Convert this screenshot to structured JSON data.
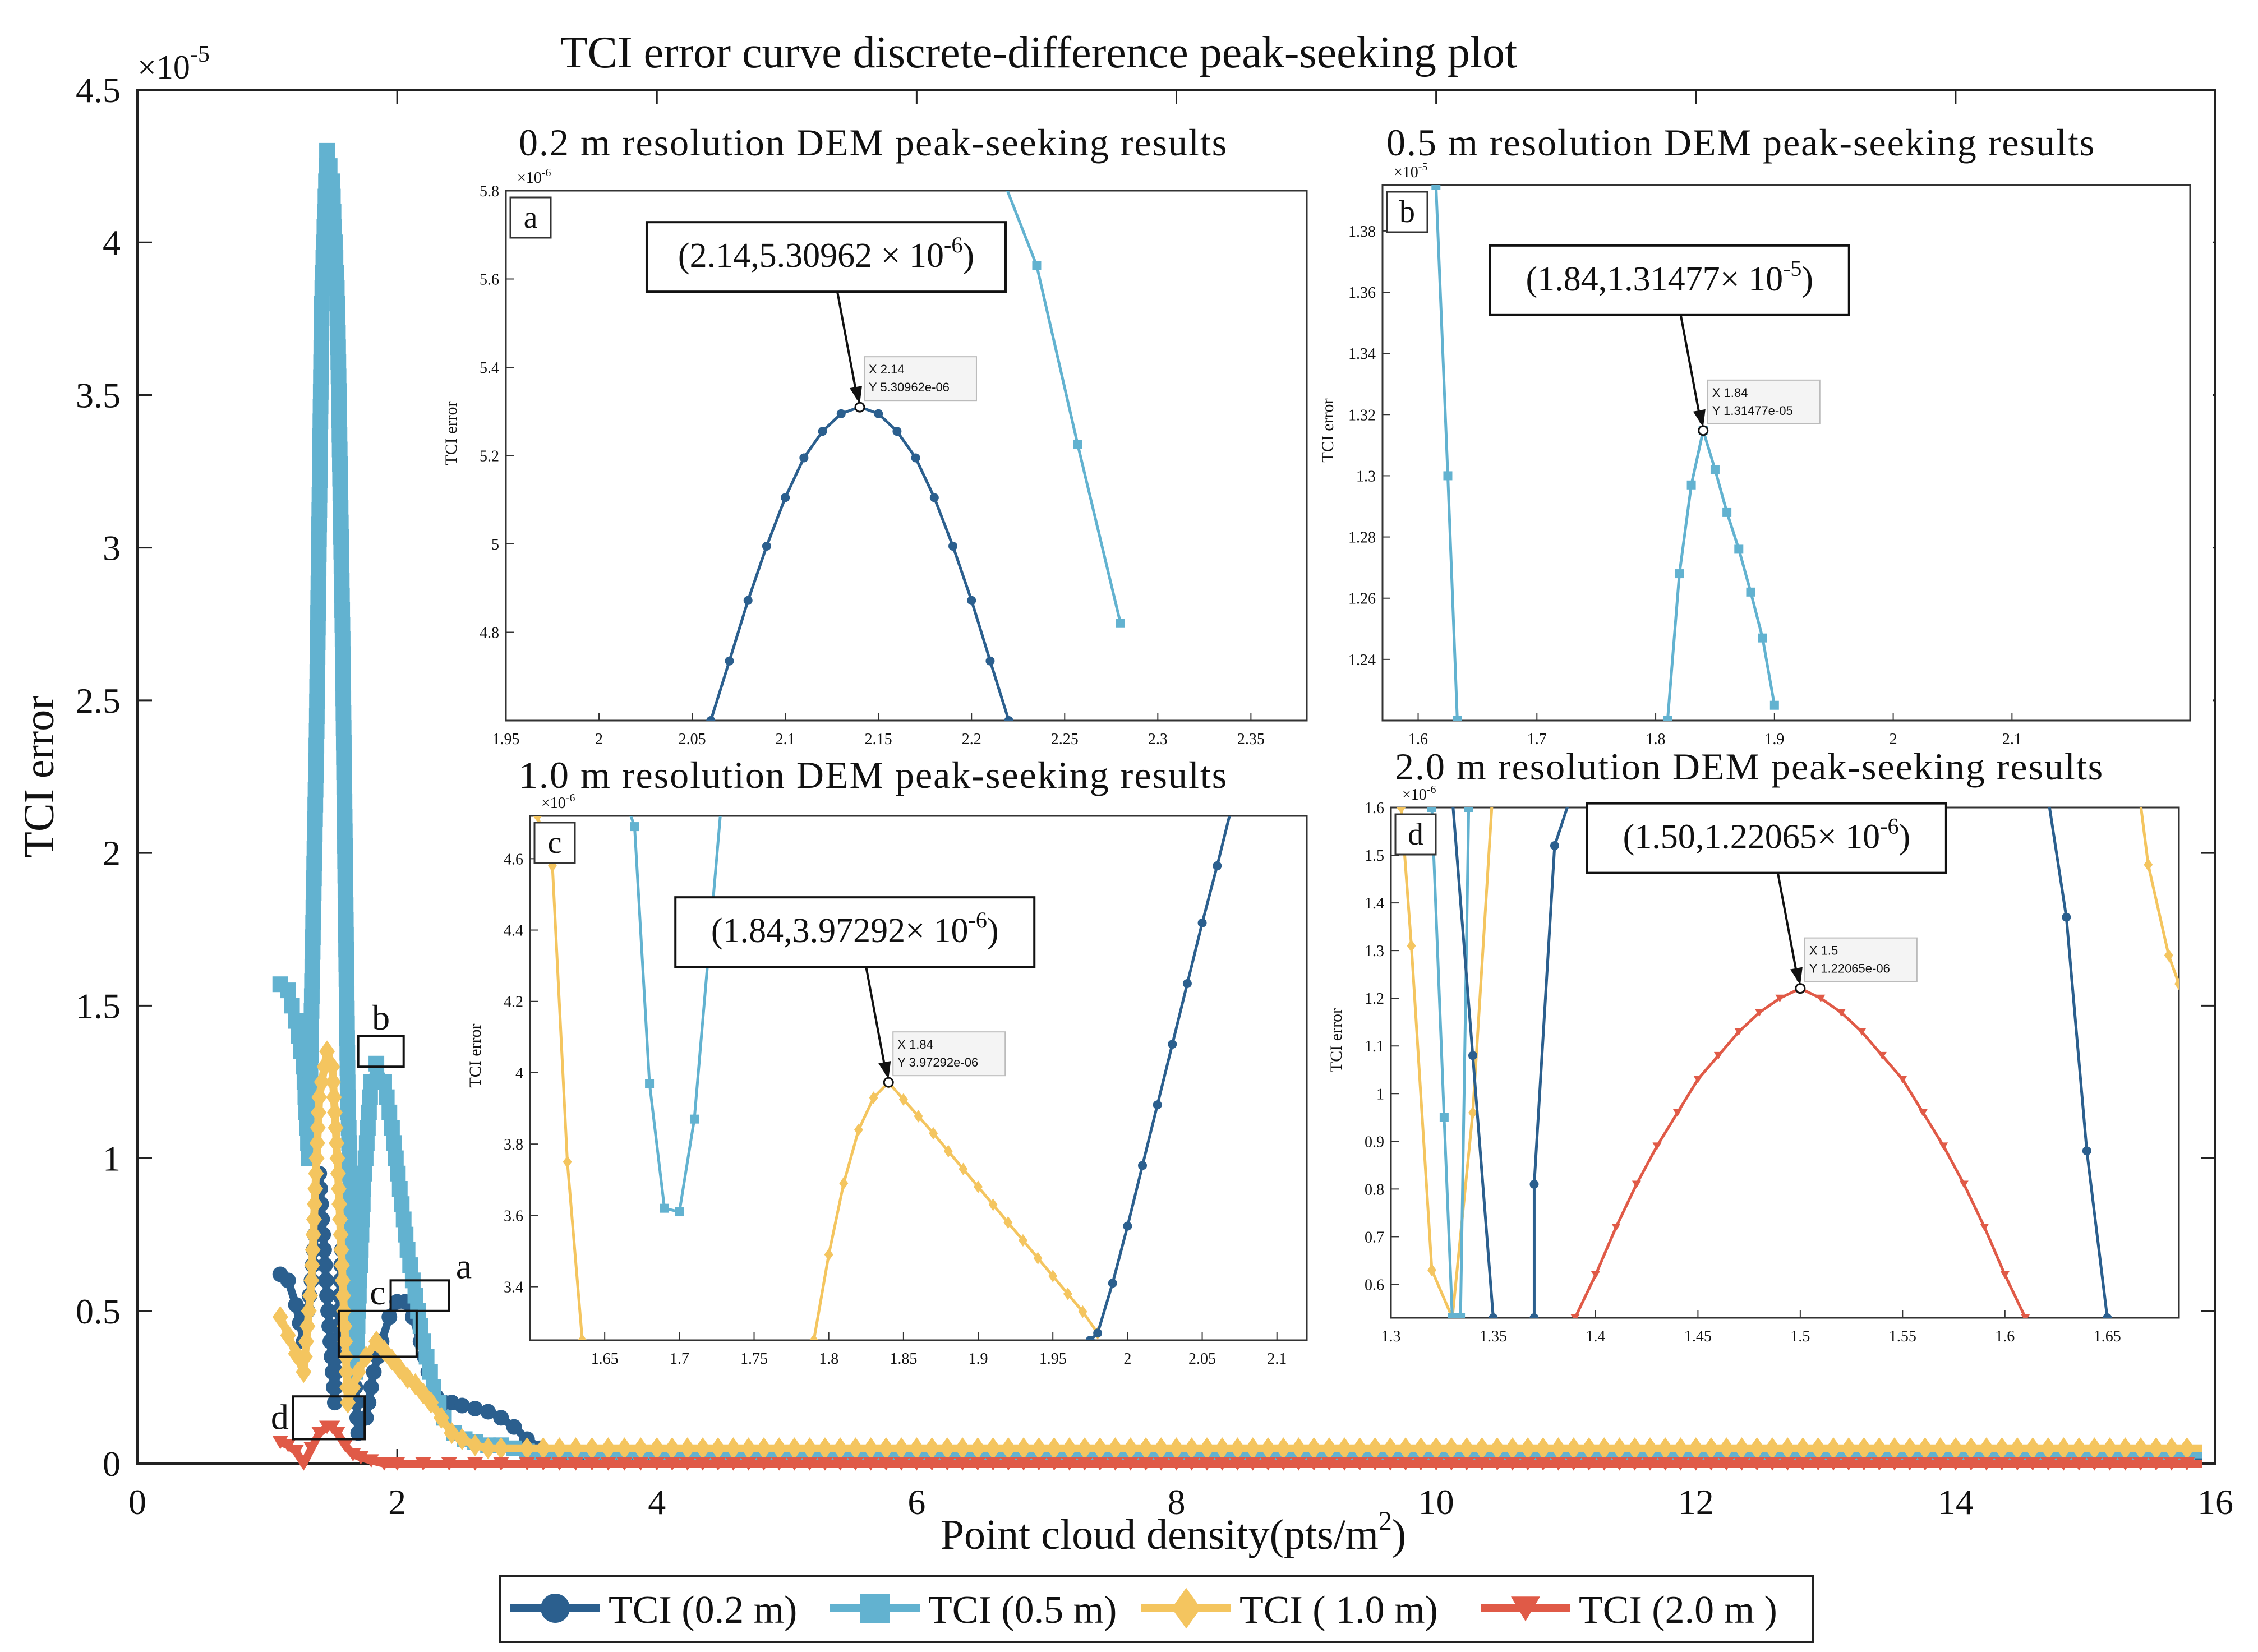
{
  "colors": {
    "tci_02": "#2b5f8e",
    "tci_05": "#62b2d0",
    "tci_10": "#f4c55f",
    "tci_20": "#e05a47",
    "datatip_text": "#1e8fd6",
    "axis": "#222222"
  },
  "chart_data": [
    {
      "id": "main",
      "type": "line",
      "title": "TCI error curve discrete-difference peak-seeking plot",
      "xlabel_main": "Point cloud density(pts/m",
      "xlabel_sup": "2",
      "xlabel_close": ")",
      "ylabel": "TCI error",
      "y_exponent": "×10",
      "y_exponent_power": "-5",
      "xlim": [
        0,
        16
      ],
      "ylim": [
        0,
        4.5
      ],
      "xticks": [
        "0",
        "2",
        "4",
        "6",
        "8",
        "10",
        "12",
        "14",
        "16"
      ],
      "yticks": [
        "0",
        "0.5",
        "1",
        "1.5",
        "2",
        "2.5",
        "3",
        "3.5",
        "4",
        "4.5"
      ],
      "legend": [
        {
          "label": "TCI (0.2 m)",
          "marker": "circle",
          "color": "#2b5f8e"
        },
        {
          "label": "TCI (0.5 m)",
          "marker": "square",
          "color": "#62b2d0"
        },
        {
          "label": "TCI ( 1.0 m)",
          "marker": "diamond",
          "color": "#f4c55f"
        },
        {
          "label": "TCI (2.0 m )",
          "marker": "triangle",
          "color": "#e05a47"
        }
      ],
      "zoom_boxes": [
        {
          "label": "a",
          "x": [
            1.95,
            2.4
          ],
          "y": [
            0.5,
            0.6
          ]
        },
        {
          "label": "b",
          "x": [
            1.7,
            2.05
          ],
          "y": [
            1.3,
            1.4
          ]
        },
        {
          "label": "c",
          "x": [
            1.55,
            2.15
          ],
          "y": [
            0.35,
            0.5
          ]
        },
        {
          "label": "d",
          "x": [
            1.2,
            1.75
          ],
          "y": [
            0.08,
            0.22
          ]
        }
      ],
      "series": [
        {
          "name": "TCI (0.2 m)",
          "x": [
            1.1,
            1.16,
            1.22,
            1.28,
            1.34,
            1.4,
            1.46,
            1.52,
            1.58,
            1.64,
            1.7,
            1.76,
            1.82,
            1.88,
            1.94,
            2.0,
            2.06,
            2.12,
            2.18,
            2.24,
            2.3,
            2.36,
            2.42,
            2.5,
            2.6,
            2.7,
            2.8,
            2.9,
            3.0,
            3.1,
            3.2,
            3.6,
            4,
            6,
            8,
            10,
            12,
            14,
            15.9
          ],
          "y": [
            0.62,
            0.6,
            0.52,
            0.4,
            0.6,
            0.95,
            0.55,
            0.2,
            0.75,
            0.5,
            0.1,
            0.15,
            0.3,
            0.4,
            0.48,
            0.53,
            0.53,
            0.48,
            0.4,
            0.3,
            0.22,
            0.2,
            0.2,
            0.19,
            0.18,
            0.17,
            0.15,
            0.12,
            0.08,
            0.05,
            0.02,
            0.02,
            0.02,
            0.02,
            0.02,
            0.02,
            0.02,
            0.02,
            0.02
          ]
        },
        {
          "name": "TCI (0.5 m)",
          "x": [
            1.1,
            1.16,
            1.22,
            1.28,
            1.32,
            1.38,
            1.42,
            1.46,
            1.5,
            1.54,
            1.58,
            1.62,
            1.68,
            1.74,
            1.8,
            1.84,
            1.9,
            1.96,
            2.02,
            2.08,
            2.14,
            2.2,
            2.28,
            2.36,
            2.44,
            2.52,
            2.6,
            2.7,
            2.8,
            2.9,
            3.0,
            3.1,
            3.5,
            4,
            6,
            8,
            10,
            12,
            14,
            15.9
          ],
          "y": [
            1.57,
            1.55,
            1.45,
            1.3,
            1.0,
            2.4,
            3.8,
            4.3,
            4.2,
            3.8,
            2.7,
            1.2,
            0.3,
            0.9,
            1.25,
            1.31,
            1.25,
            1.1,
            0.9,
            0.7,
            0.55,
            0.4,
            0.25,
            0.15,
            0.1,
            0.08,
            0.07,
            0.06,
            0.06,
            0.05,
            0.04,
            0.03,
            0.03,
            0.03,
            0.03,
            0.03,
            0.03,
            0.03,
            0.03,
            0.03
          ]
        },
        {
          "name": "TCI ( 1.0 m)",
          "x": [
            1.1,
            1.16,
            1.22,
            1.28,
            1.34,
            1.4,
            1.46,
            1.5,
            1.54,
            1.58,
            1.62,
            1.66,
            1.7,
            1.76,
            1.84,
            1.9,
            1.96,
            2.02,
            2.08,
            2.14,
            2.2,
            2.26,
            2.34,
            2.42,
            2.5,
            2.6,
            2.7,
            2.8,
            3.0,
            3.5,
            4,
            6,
            8,
            10,
            12,
            14,
            15.9
          ],
          "y": [
            0.48,
            0.42,
            0.36,
            0.3,
            0.6,
            1.2,
            1.35,
            1.3,
            1.0,
            0.6,
            0.2,
            0.25,
            0.3,
            0.35,
            0.4,
            0.37,
            0.34,
            0.31,
            0.28,
            0.26,
            0.23,
            0.2,
            0.15,
            0.1,
            0.08,
            0.06,
            0.05,
            0.05,
            0.05,
            0.05,
            0.05,
            0.05,
            0.05,
            0.05,
            0.05,
            0.05,
            0.05
          ]
        },
        {
          "name": "TCI (2.0 m )",
          "x": [
            1.1,
            1.16,
            1.22,
            1.28,
            1.34,
            1.4,
            1.46,
            1.5,
            1.54,
            1.6,
            1.66,
            1.72,
            1.8,
            1.9,
            2.0,
            2.2,
            2.4,
            2.6,
            2.8,
            3.0,
            3.5,
            4,
            6,
            8,
            10,
            12,
            14,
            15.9
          ],
          "y": [
            0.07,
            0.06,
            0.04,
            0.0,
            0.05,
            0.1,
            0.12,
            0.12,
            0.1,
            0.06,
            0.03,
            0.02,
            0.01,
            0.0,
            0.0,
            0.0,
            0.0,
            0.0,
            0.0,
            0.0,
            0.0,
            0.0,
            0.0,
            0.0,
            0.0,
            0.0,
            0.0,
            0.0
          ]
        }
      ]
    },
    {
      "id": "a",
      "type": "line",
      "title": "0.2 m resolution DEM peak-seeking results",
      "panel_label": "a",
      "ylabel": "TCI error",
      "exponent": "×10",
      "exponent_power": "-6",
      "xlim": [
        1.95,
        2.38
      ],
      "ylim": [
        4.6,
        5.8
      ],
      "xticks": [
        1.95,
        2.0,
        2.05,
        2.1,
        2.15,
        2.2,
        2.25,
        2.3,
        2.35
      ],
      "xtick_labels": [
        "1.95",
        "2",
        "2.05",
        "2.1",
        "2.15",
        "2.2",
        "2.25",
        "2.3",
        "2.35"
      ],
      "yticks": [
        4.8,
        5.0,
        5.2,
        5.4,
        5.6,
        5.8
      ],
      "ytick_labels": [
        "4.8",
        "5",
        "5.2",
        "5.4",
        "5.6",
        "5.8"
      ],
      "annotation_main": "(2.14,5.30962 × 10",
      "annotation_power": "-6",
      "annotation_close": ")",
      "datatip_x": "X 2.14",
      "datatip_y": "Y 5.30962e-06",
      "peak": [
        2.14,
        5.30962
      ],
      "series": [
        {
          "name": "TCI (0.2 m)",
          "x": [
            2.06,
            2.07,
            2.08,
            2.09,
            2.1,
            2.11,
            2.12,
            2.13,
            2.14,
            2.15,
            2.16,
            2.17,
            2.18,
            2.19,
            2.2,
            2.21,
            2.22
          ],
          "y": [
            4.6,
            4.735,
            4.872,
            4.995,
            5.105,
            5.195,
            5.255,
            5.295,
            5.31,
            5.295,
            5.255,
            5.195,
            5.105,
            4.995,
            4.872,
            4.735,
            4.6
          ]
        },
        {
          "name": "TCI (0.5 m)",
          "x": [
            2.21,
            2.235,
            2.257,
            2.28
          ],
          "y": [
            5.9,
            5.63,
            5.225,
            4.82
          ]
        }
      ]
    },
    {
      "id": "b",
      "type": "line",
      "title": "0.5 m resolution DEM peak-seeking results",
      "panel_label": "b",
      "ylabel": "TCI error",
      "exponent": "×10",
      "exponent_power": "-5",
      "xlim": [
        1.57,
        2.25
      ],
      "ylim": [
        1.22,
        1.395
      ],
      "xticks": [
        1.6,
        1.7,
        1.8,
        1.9,
        2.0,
        2.1
      ],
      "xtick_labels": [
        "1.6",
        "1.7",
        "1.8",
        "1.9",
        "2",
        "2.1"
      ],
      "yticks": [
        1.24,
        1.26,
        1.28,
        1.3,
        1.32,
        1.34,
        1.36,
        1.38
      ],
      "ytick_labels": [
        "1.24",
        "1.26",
        "1.28",
        "1.3",
        "1.32",
        "1.34",
        "1.36",
        "1.38"
      ],
      "annotation_main": "(1.84,1.31477× 10",
      "annotation_power": "-5",
      "annotation_close": ")",
      "datatip_x": "X 1.84",
      "datatip_y": "Y 1.31477e-05",
      "peak": [
        1.84,
        1.31477
      ],
      "series": [
        {
          "name": "TCI (0.5 m)",
          "x": [
            1.81,
            1.82,
            1.83,
            1.84,
            1.85,
            1.86,
            1.87,
            1.88,
            1.89,
            1.9
          ],
          "y": [
            1.22,
            1.268,
            1.297,
            1.31477,
            1.302,
            1.288,
            1.276,
            1.262,
            1.247,
            1.225
          ]
        },
        {
          "name": "TCI (0.5 m) steep",
          "x": [
            1.615,
            1.625,
            1.633
          ],
          "y": [
            1.395,
            1.3,
            1.22
          ]
        }
      ]
    },
    {
      "id": "c",
      "type": "line",
      "title": "1.0 m resolution DEM peak-seeking results",
      "panel_label": "c",
      "ylabel": "TCI error",
      "exponent": "×10",
      "exponent_power": "-6",
      "xlim": [
        1.6,
        2.12
      ],
      "ylim": [
        3.25,
        4.72
      ],
      "xticks": [
        1.65,
        1.7,
        1.75,
        1.8,
        1.85,
        1.9,
        1.95,
        2.0,
        2.05,
        2.1
      ],
      "xtick_labels": [
        "1.65",
        "1.7",
        "1.75",
        "1.8",
        "1.85",
        "1.9",
        "1.95",
        "2",
        "2.05",
        "2.1"
      ],
      "yticks": [
        3.4,
        3.6,
        3.8,
        4.0,
        4.2,
        4.4,
        4.6
      ],
      "ytick_labels": [
        "3.4",
        "3.6",
        "3.8",
        "4",
        "4.2",
        "4.4",
        "4.6"
      ],
      "annotation_main": "(1.84,3.97292× 10",
      "annotation_power": "-6",
      "annotation_close": ")",
      "datatip_x": "X 1.84",
      "datatip_y": "Y 3.97292e-06",
      "peak": [
        1.84,
        3.97292
      ],
      "series": [
        {
          "name": "TCI ( 1.0 m)",
          "x": [
            1.79,
            1.8,
            1.81,
            1.82,
            1.83,
            1.84,
            1.85,
            1.86,
            1.87,
            1.88,
            1.89,
            1.9,
            1.91,
            1.92,
            1.93,
            1.94,
            1.95,
            1.96,
            1.97,
            1.98
          ],
          "y": [
            3.25,
            3.49,
            3.69,
            3.84,
            3.93,
            3.97292,
            3.925,
            3.878,
            3.83,
            3.78,
            3.73,
            3.68,
            3.63,
            3.58,
            3.53,
            3.48,
            3.43,
            3.38,
            3.33,
            3.27
          ]
        },
        {
          "name": "TCI ( 1.0 m) left",
          "x": [
            1.605,
            1.615,
            1.625,
            1.635
          ],
          "y": [
            4.72,
            4.58,
            3.75,
            3.25
          ]
        },
        {
          "name": "TCI (0.5 m)",
          "x": [
            1.665,
            1.67,
            1.68,
            1.69,
            1.7,
            1.71,
            1.72,
            1.728
          ],
          "y": [
            4.75,
            4.69,
            3.97,
            3.62,
            3.61,
            3.87,
            4.36,
            4.75
          ]
        },
        {
          "name": "TCI (0.2 m)",
          "x": [
            1.975,
            1.98,
            1.99,
            2.0,
            2.01,
            2.02,
            2.03,
            2.04,
            2.05,
            2.06
          ],
          "y": [
            3.25,
            3.27,
            3.41,
            3.57,
            3.74,
            3.91,
            4.08,
            4.25,
            4.42,
            4.58
          ]
        },
        {
          "name": "TCI (0.2 m) top",
          "x": [
            2.06,
            2.07
          ],
          "y": [
            4.58,
            4.75
          ]
        }
      ]
    },
    {
      "id": "d",
      "type": "line",
      "title": "2.0 m resolution DEM peak-seeking results",
      "panel_label": "d",
      "ylabel": "TCI error",
      "exponent": "×10",
      "exponent_power": "-6",
      "xlim": [
        1.3,
        1.685
      ],
      "ylim": [
        0.53,
        1.6
      ],
      "xticks": [
        1.3,
        1.35,
        1.4,
        1.45,
        1.5,
        1.55,
        1.6,
        1.65
      ],
      "xtick_labels": [
        "1.3",
        "1.35",
        "1.4",
        "1.45",
        "1.5",
        "1.55",
        "1.6",
        "1.65"
      ],
      "yticks": [
        0.6,
        0.7,
        0.8,
        0.9,
        1.0,
        1.1,
        1.2,
        1.3,
        1.4,
        1.5,
        1.6
      ],
      "ytick_labels": [
        "0.6",
        "0.7",
        "0.8",
        "0.9",
        "1",
        "1.1",
        "1.2",
        "1.3",
        "1.4",
        "1.5",
        "1.6"
      ],
      "annotation_main": "(1.50,1.22065× 10",
      "annotation_power": "-6",
      "annotation_close": ")",
      "datatip_x": "X 1.5",
      "datatip_y": "Y 1.22065e-06",
      "peak": [
        1.5,
        1.22065
      ],
      "series": [
        {
          "name": "TCI (2.0 m )",
          "x": [
            1.39,
            1.4,
            1.41,
            1.42,
            1.43,
            1.44,
            1.45,
            1.46,
            1.47,
            1.48,
            1.49,
            1.5,
            1.51,
            1.52,
            1.53,
            1.54,
            1.55,
            1.56,
            1.57,
            1.58,
            1.59,
            1.6,
            1.61
          ],
          "y": [
            0.53,
            0.62,
            0.72,
            0.81,
            0.89,
            0.96,
            1.03,
            1.08,
            1.13,
            1.17,
            1.2,
            1.22065,
            1.2,
            1.17,
            1.13,
            1.08,
            1.03,
            0.96,
            0.89,
            0.81,
            0.72,
            0.62,
            0.53
          ]
        },
        {
          "name": "TCI ( 1.0 m) a",
          "x": [
            1.305,
            1.31,
            1.32,
            1.33
          ],
          "y": [
            1.6,
            1.31,
            0.63,
            0.53
          ]
        },
        {
          "name": "TCI ( 1.0 m) b",
          "x": [
            1.33,
            1.34,
            1.35
          ],
          "y": [
            0.53,
            0.96,
            1.65
          ]
        },
        {
          "name": "TCI ( 1.0 m) c",
          "x": [
            1.665,
            1.67,
            1.68,
            1.685
          ],
          "y": [
            1.65,
            1.48,
            1.29,
            1.23
          ]
        },
        {
          "name": "TCI (0.5 m) a",
          "x": [
            1.32,
            1.326,
            1.33
          ],
          "y": [
            1.6,
            0.95,
            0.53
          ]
        },
        {
          "name": "TCI (0.5 m) b",
          "x": [
            1.334,
            1.338
          ],
          "y": [
            0.53,
            1.6
          ]
        },
        {
          "name": "TCI (0.2 m) a",
          "x": [
            1.33,
            1.34,
            1.35
          ],
          "y": [
            1.62,
            1.08,
            0.53
          ]
        },
        {
          "name": "TCI (0.2 m) b",
          "x": [
            1.37,
            1.37,
            1.38,
            1.39
          ],
          "y": [
            0.53,
            0.81,
            1.52,
            1.65
          ]
        },
        {
          "name": "TCI (0.2 m) c",
          "x": [
            1.62,
            1.63,
            1.64,
            1.65
          ],
          "y": [
            1.65,
            1.37,
            0.88,
            0.53
          ]
        }
      ]
    }
  ]
}
